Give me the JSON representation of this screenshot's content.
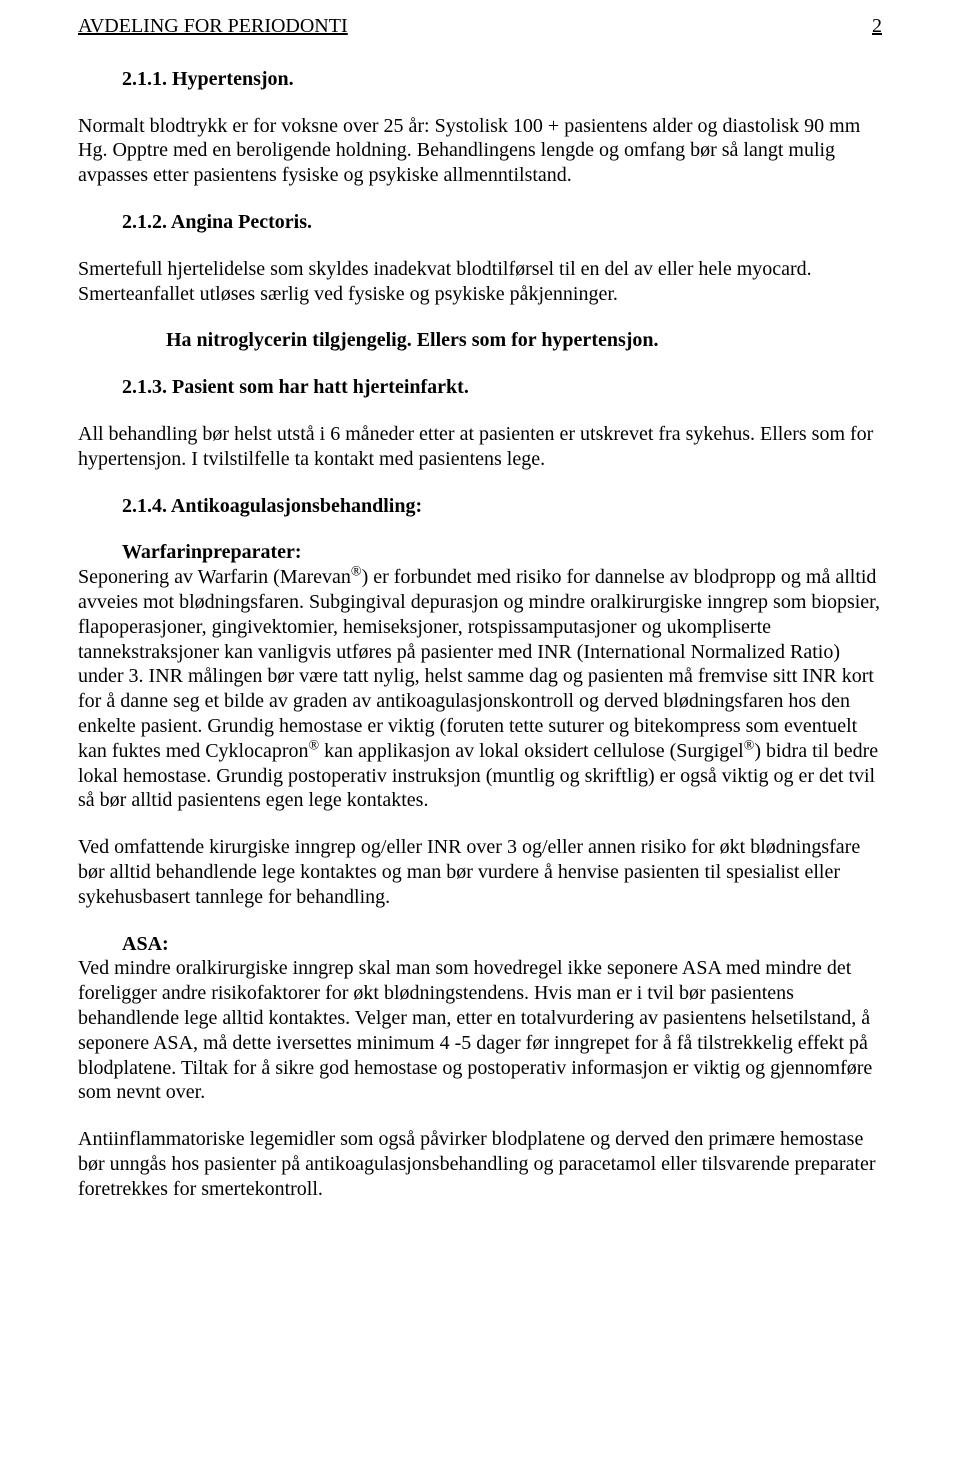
{
  "header": {
    "title": "AVDELING FOR PERIODONTI",
    "page_number": "2"
  },
  "sections": {
    "s211": {
      "heading": "2.1.1. Hypertensjon.",
      "body": "Normalt blodtrykk er for voksne over 25 år: Systolisk 100 + pasientens alder og diastolisk 90 mm Hg. Opptre med en beroligende holdning. Behandlingens lengde og omfang bør så langt mulig avpasses etter pasientens fysiske og psykiske allmenntilstand."
    },
    "s212": {
      "heading": "2.1.2. Angina Pectoris.",
      "body": "Smertefull hjertelidelse som skyldes inadekvat blodtilførsel til en del av eller hele myocard. Smerteanfallet utløses særlig ved fysiske og psykiske påkjenninger.",
      "note": "Ha nitroglycerin tilgjengelig. Ellers som for hypertensjon."
    },
    "s213": {
      "heading": "2.1.3. Pasient som har hatt hjerteinfarkt.",
      "body": "All behandling bør helst utstå i 6 måneder etter at pasienten er utskrevet fra sykehus. Ellers som for hypertensjon. I tvilstilfelle ta kontakt med pasientens lege."
    },
    "s214": {
      "heading": "2.1.4. Antikoagulasjonsbehandling:",
      "sub1_label": "Warfarinpreparater:",
      "sub1_body_a": "Seponering av Warfarin (Marevan",
      "sub1_body_b": ") er forbundet med risiko for dannelse av blodpropp og må alltid avveies mot blødningsfaren. Subgingival depurasjon og mindre oralkirurgiske inngrep som biopsier, flapoperasjoner, gingivektomier, hemiseksjoner, rotspissamputasjoner og ukompliserte tannekstraksjoner kan vanligvis utføres på pasienter med INR (International Normalized Ratio) under 3. INR målingen bør være tatt nylig, helst samme dag og pasienten må fremvise sitt INR kort for å danne seg et bilde av graden av antikoagulasjonskontroll og derved blødningsfaren hos den enkelte pasient. Grundig hemostase er viktig (foruten tette suturer og bitekompress som eventuelt kan fuktes med Cyklocapron",
      "sub1_body_c": " kan applikasjon av lokal oksidert cellulose (Surgigel",
      "sub1_body_d": ") bidra til bedre lokal hemostase. Grundig postoperativ instruksjon (muntlig og skriftlig) er også viktig og er det tvil så bør alltid pasientens egen lege kontaktes.",
      "sub1_body2": "Ved omfattende kirurgiske inngrep og/eller INR over 3 og/eller annen risiko for økt blødningsfare bør alltid behandlende lege kontaktes og man bør vurdere å henvise pasienten til spesialist eller sykehusbasert tannlege for behandling.",
      "sub2_label": "ASA:",
      "sub2_body": "Ved mindre oralkirurgiske inngrep skal man som hovedregel ikke seponere ASA med mindre det foreligger andre risikofaktorer for økt blødningstendens. Hvis man er i tvil bør pasientens behandlende lege alltid kontaktes. Velger man, etter en totalvurdering av pasientens helsetilstand, å seponere ASA, må dette iversettes minimum 4 -5 dager før inngrepet for å få tilstrekkelig effekt på blodplatene. Tiltak for å sikre god hemostase og postoperativ informasjon er viktig og gjennomføre som nevnt over.",
      "sub3_body": "Antiinflammatoriske legemidler som også påvirker blodplatene og derved den primære hemostase bør unngås hos pasienter på antikoagulasjonsbehandling og paracetamol eller tilsvarende preparater foretrekkes for smertekontroll."
    }
  },
  "registered": "®"
}
